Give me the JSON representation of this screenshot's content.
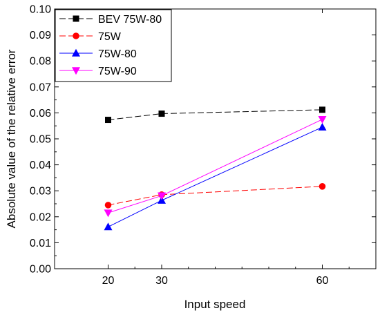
{
  "chart_data": {
    "type": "line",
    "title": "",
    "xlabel": "Input speed",
    "ylabel": "Absolute value of the relative error",
    "x": [
      20,
      30,
      60
    ],
    "xticks": [
      20,
      30,
      60
    ],
    "xlim": [
      10,
      70
    ],
    "ylim": [
      0,
      0.1
    ],
    "yticks": [
      "0.00",
      "0.01",
      "0.02",
      "0.03",
      "0.04",
      "0.05",
      "0.06",
      "0.07",
      "0.08",
      "0.09",
      "0.10"
    ],
    "grid": false,
    "legend_position": "top-left",
    "series": [
      {
        "name": "BEV 75W-80",
        "values": [
          0.0573,
          0.0597,
          0.0612
        ],
        "color": "#000000",
        "marker": "square",
        "line_style": "dashed"
      },
      {
        "name": "75W",
        "values": [
          0.0245,
          0.0285,
          0.0317
        ],
        "color": "#ff0000",
        "marker": "circle",
        "line_style": "dashed"
      },
      {
        "name": "75W-80",
        "values": [
          0.0161,
          0.0263,
          0.0545
        ],
        "color": "#0000ff",
        "marker": "triangle-up",
        "line_style": "solid"
      },
      {
        "name": "75W-90",
        "values": [
          0.0215,
          0.0281,
          0.0575
        ],
        "color": "#ff00ff",
        "marker": "triangle-down",
        "line_style": "solid"
      }
    ]
  }
}
